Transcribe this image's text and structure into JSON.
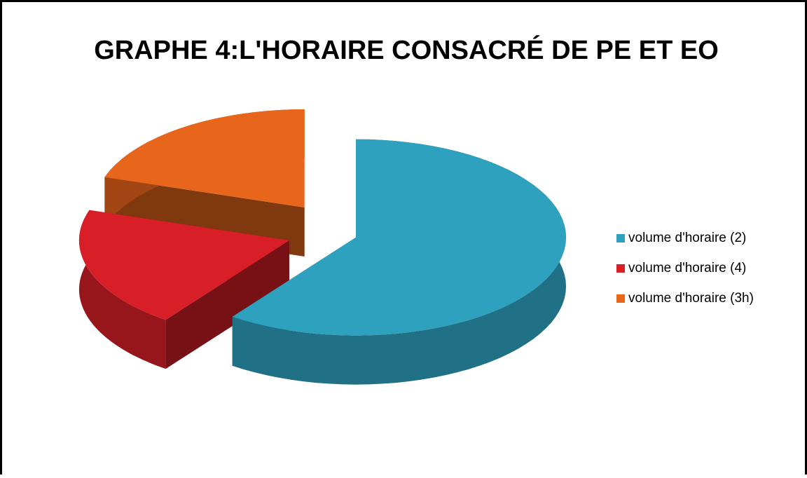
{
  "chart_data": {
    "type": "pie3d",
    "title": "GRAPHE 4:L'HORAIRE CONSACRÉ DE PE ET EO",
    "categories": [
      "volume d'horaire (2)",
      "volume d'horaire (4)",
      "volume d'horaire (3h)"
    ],
    "values": [
      60,
      20,
      20
    ],
    "colors": [
      "#2ea1be",
      "#d81f27",
      "#e8661b"
    ],
    "legend": "right"
  }
}
